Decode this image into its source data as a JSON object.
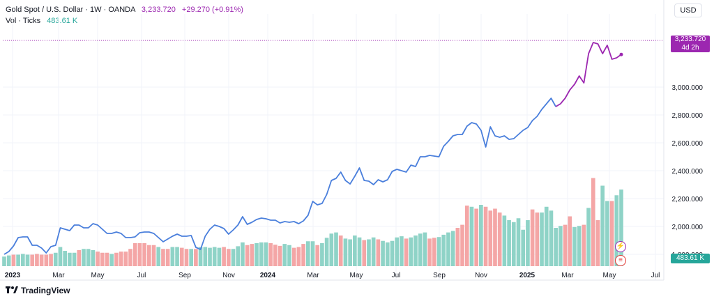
{
  "legend": {
    "symbol": "Gold Spot / U.S. Dollar · 1W · OANDA",
    "price": "3,233.720",
    "change": "+29.270 (+0.91%)",
    "vol_label": "Vol · Ticks",
    "vol_value": "483.61 K"
  },
  "currency_button": "USD",
  "price_tag": {
    "price": "3,233.720",
    "countdown": "4d 2h"
  },
  "vol_tag": "483.61 K",
  "brand": "TradingView",
  "icons": [
    "lightning-icon",
    "us-flag-icon"
  ],
  "colors": {
    "line_blue": "#4a7fdc",
    "line_purple": "#9c27b0",
    "vol_up": "#8fd3c7",
    "vol_down": "#f4a6a6",
    "grid": "#f0f3fa"
  },
  "chart_data": {
    "type": "line",
    "x_labels": [
      "2023",
      "Mar",
      "May",
      "Jul",
      "Sep",
      "Nov",
      "2024",
      "Mar",
      "May",
      "Jul",
      "Sep",
      "Nov",
      "2025",
      "Mar",
      "May",
      "Jul"
    ],
    "y_ticks": [
      "3,000.000",
      "2,800.000",
      "2,600.000",
      "2,400.000",
      "2,200.000",
      "2,000.000",
      "1,800.000"
    ],
    "ylim": [
      1640,
      3300
    ],
    "series": [
      {
        "values": [
          1800,
          1820,
          1860,
          1920,
          1925,
          1925,
          1865,
          1865,
          1845,
          1810,
          1855,
          1865,
          1990,
          1980,
          1970,
          2010,
          2010,
          1990,
          1990,
          2020,
          2010,
          1980,
          1950,
          1950,
          1960,
          1950,
          1920,
          1920,
          1925,
          1955,
          1960,
          1960,
          1950,
          1920,
          1890,
          1910,
          1930,
          1945,
          1930,
          1930,
          1935,
          1850,
          1835,
          1930,
          1980,
          2010,
          2000,
          1985,
          1945,
          1975,
          2010,
          2070,
          2015,
          2030,
          2050,
          2060,
          2055,
          2045,
          2045,
          2025,
          2035,
          2030,
          2035,
          2020,
          2040,
          2080,
          2180,
          2155,
          2165,
          2230,
          2330,
          2345,
          2390,
          2330,
          2305,
          2360,
          2420,
          2330,
          2325,
          2300,
          2335,
          2320,
          2335,
          2395,
          2410,
          2400,
          2390,
          2440,
          2430,
          2500,
          2500,
          2510,
          2505,
          2500,
          2575,
          2610,
          2650,
          2660,
          2660,
          2720,
          2745,
          2735,
          2690,
          2570,
          2715,
          2650,
          2640,
          2650,
          2625,
          2630,
          2660,
          2690,
          2710,
          2760,
          2790,
          2840,
          2880,
          2920,
          2860,
          2880,
          2920,
          2980,
          3020,
          3080,
          3030,
          3240,
          3320,
          3310,
          3240,
          3300,
          3200,
          3210,
          3234
        ]
      }
    ],
    "volume": {
      "max": 200,
      "values": [
        25,
        28,
        30,
        30,
        32,
        30,
        30,
        32,
        30,
        30,
        32,
        35,
        50,
        40,
        35,
        35,
        42,
        45,
        45,
        42,
        38,
        35,
        35,
        32,
        35,
        38,
        38,
        45,
        60,
        60,
        60,
        55,
        55,
        50,
        45,
        45,
        50,
        50,
        48,
        45,
        45,
        45,
        50,
        50,
        48,
        50,
        48,
        50,
        45,
        45,
        52,
        62,
        55,
        58,
        60,
        62,
        62,
        60,
        56,
        53,
        58,
        55,
        48,
        50,
        58,
        65,
        65,
        55,
        60,
        74,
        85,
        88,
        80,
        72,
        70,
        80,
        75,
        68,
        70,
        75,
        70,
        66,
        62,
        66,
        75,
        78,
        72,
        75,
        80,
        85,
        88,
        72,
        74,
        76,
        82,
        88,
        92,
        100,
        108,
        158,
        155,
        150,
        160,
        155,
        145,
        150,
        140,
        132,
        120,
        115,
        125,
        95,
        120,
        148,
        140,
        140,
        155,
        145,
        100,
        105,
        108,
        130,
        102,
        105,
        108,
        152,
        230,
        120,
        210,
        170,
        170,
        185,
        200
      ],
      "down": [
        2,
        6,
        7,
        8,
        9,
        10,
        16,
        20,
        21,
        22,
        24,
        25,
        26,
        27,
        28,
        29,
        30,
        31,
        32,
        34,
        35,
        38,
        39,
        41,
        47,
        48,
        52,
        53,
        57,
        58,
        59,
        62,
        63,
        64,
        67,
        72,
        77,
        80,
        86,
        91,
        92,
        97,
        98,
        99,
        101,
        103,
        104,
        105,
        106,
        113,
        114,
        120,
        121,
        124,
        126,
        127,
        130
      ]
    }
  }
}
